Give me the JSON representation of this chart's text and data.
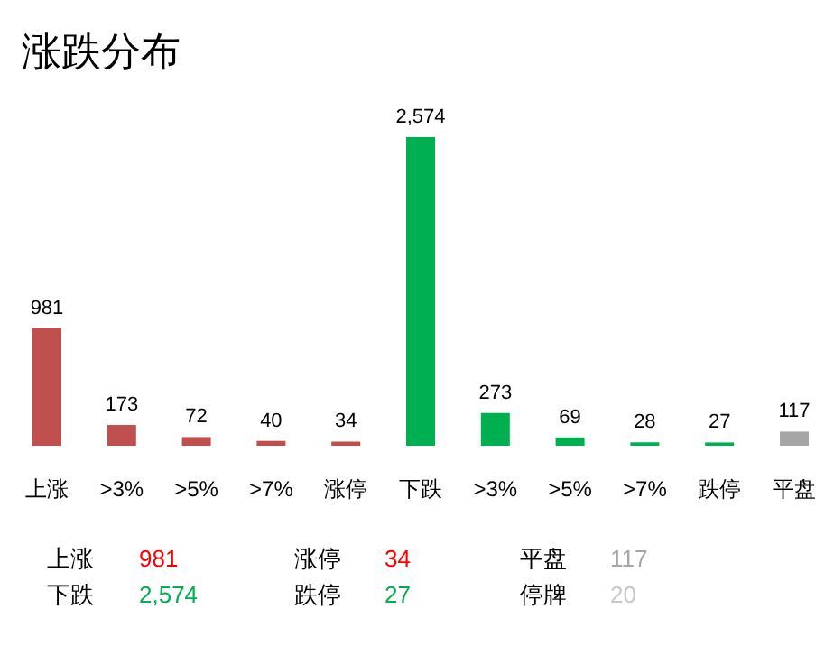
{
  "chart_data": {
    "type": "bar",
    "title": "涨跌分布",
    "relative": false,
    "categories": [
      "上涨",
      ">3%",
      ">5%",
      ">7%",
      "涨停",
      "下跌",
      ">3%",
      ">5%",
      ">7%",
      "跌停",
      "平盘"
    ],
    "values": [
      981,
      173,
      72,
      40,
      34,
      2574,
      273,
      69,
      28,
      27,
      117
    ],
    "value_labels": [
      "981",
      "173",
      "72",
      "40",
      "34",
      "2,574",
      "273",
      "69",
      "28",
      "27",
      "117"
    ],
    "colors": [
      "#c0504d",
      "#c0504d",
      "#c0504d",
      "#c0504d",
      "#c0504d",
      "#00b050",
      "#00b050",
      "#00b050",
      "#00b050",
      "#00b050",
      "#a6a6a6"
    ],
    "annotations": [
      "上涨",
      "981",
      "涨停",
      "34",
      "平盘",
      "117",
      "下跌",
      "2,574",
      "跌停",
      "27",
      "停牌",
      "20"
    ]
  }
}
